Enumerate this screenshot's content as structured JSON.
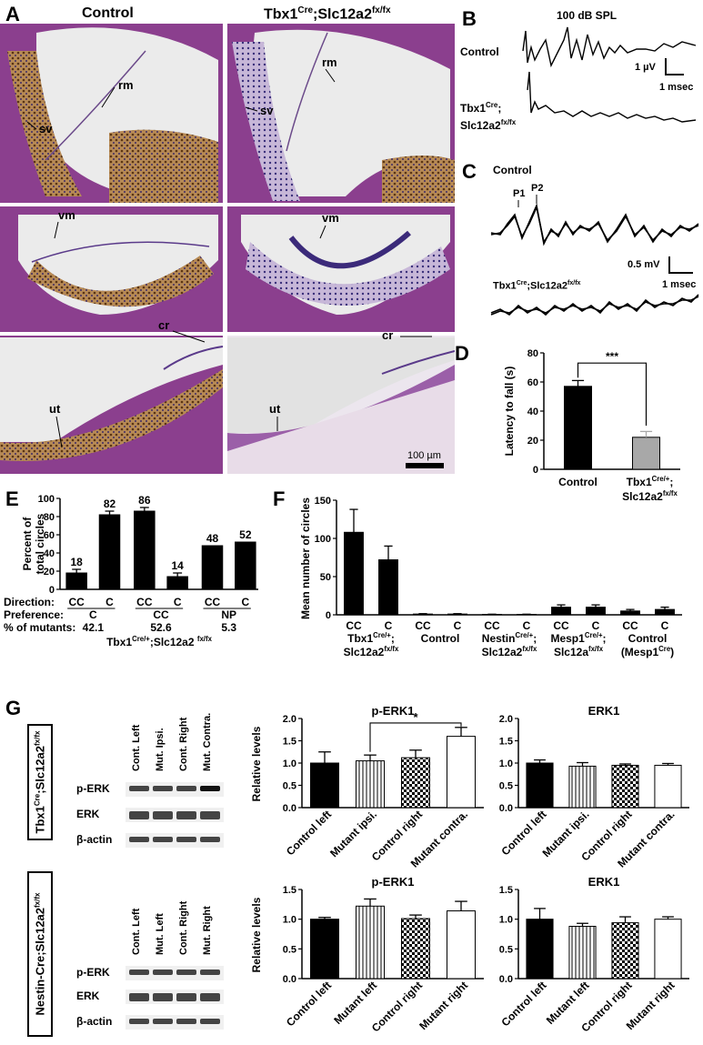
{
  "panel_a": {
    "letter": "A",
    "col_control": "Control",
    "col_mutant_main": "Tbx1",
    "col_mutant_sup1": "Cre",
    "col_mutant_mid": ";Slc12a2",
    "col_mutant_sup2": "fx/fx",
    "labels": {
      "rm": "rm",
      "sv": "sv",
      "vm": "vm",
      "ut": "ut",
      "cr": "cr"
    },
    "scalebar": "100 µm"
  },
  "panel_b": {
    "letter": "B",
    "title": "100 dB SPL",
    "control": "Control",
    "mutant_l1": "Tbx1",
    "mutant_l1_sup": "Cre",
    "mutant_l2": "Slc12a2",
    "mutant_l2_sup": "fx/fx",
    "scale_v": "1 µV",
    "scale_t": "1 msec"
  },
  "panel_c": {
    "letter": "C",
    "control": "Control",
    "p1": "P1",
    "p2": "P2",
    "scale_v": "0.5 mV",
    "scale_t": "1 msec",
    "mutant": "Tbx1",
    "mutant_sup1": "Cre",
    "mutant_mid": ";Slc12a2",
    "mutant_sup2": "fx/fx"
  },
  "chart_data": [
    {
      "id": "D",
      "type": "bar",
      "ylabel": "Latency to fall (s)",
      "ylim": [
        0,
        80
      ],
      "yticks": [
        0,
        20,
        40,
        60,
        80
      ],
      "categories": [
        "Control",
        "Tbx1Cre/+;Slc12a2fx/fx"
      ],
      "values": [
        57,
        22
      ],
      "errors": [
        4,
        4
      ],
      "colors": [
        "#000000",
        "#a8a8a8"
      ],
      "significance": "***"
    },
    {
      "id": "E",
      "type": "bar",
      "ylabel_l1": "Percent of",
      "ylabel_l2": "total circles",
      "ylim": [
        0,
        100
      ],
      "yticks": [
        0,
        20,
        40,
        60,
        80,
        100
      ],
      "categories": [
        "CC",
        "C",
        "CC",
        "C",
        "CC",
        "C"
      ],
      "values": [
        18,
        82,
        86,
        14,
        48,
        52
      ],
      "errors": [
        4,
        4,
        4,
        4,
        0,
        0
      ],
      "value_labels": [
        "18",
        "82",
        "86",
        "14",
        "48",
        "52"
      ],
      "row_labels": [
        "Direction:",
        "Preference:",
        "% of mutants:"
      ],
      "preference": [
        "C",
        "CC",
        "NP"
      ],
      "percent_mutants": [
        "42.1",
        "52.6",
        "5.3"
      ],
      "genotype": "Tbx1",
      "genotype_sup1": "Cre/+",
      "genotype_mid": ";Slc12a2 ",
      "genotype_sup2": "fx/fx"
    },
    {
      "id": "F",
      "type": "bar",
      "ylabel": "Mean number of circles",
      "ylim": [
        0,
        150
      ],
      "yticks": [
        0,
        50,
        100,
        150
      ],
      "categories": [
        "CC",
        "C",
        "CC",
        "C",
        "CC",
        "C",
        "CC",
        "C",
        "CC",
        "C"
      ],
      "values": [
        108,
        72,
        1,
        1,
        0.5,
        0.5,
        10,
        10,
        5,
        7
      ],
      "errors": [
        30,
        18,
        0.5,
        0.5,
        0.3,
        0.3,
        3,
        3,
        2,
        3
      ],
      "groups": [
        {
          "l1": "Tbx1",
          "l1_sup": "Cre/+",
          "l1_end": ";",
          "l2": "Slc12a2",
          "l2_sup": "fx/fx"
        },
        {
          "l1": "Control",
          "l1_sup": "",
          "l1_end": "",
          "l2": "",
          "l2_sup": ""
        },
        {
          "l1": "Nestin",
          "l1_sup": "Cre/+",
          "l1_end": ";",
          "l2": "Slc12a2",
          "l2_sup": "fx/fx"
        },
        {
          "l1": "Mesp1",
          "l1_sup": "Cre/+",
          "l1_end": ";",
          "l2": "Slc12a",
          "l2_sup": "fx/fx"
        },
        {
          "l1": "Control",
          "l1_sup": "",
          "l1_end": "",
          "l2": "(Mesp1",
          "l2_sup": "Cre",
          "l2_end": ")"
        }
      ]
    },
    {
      "id": "G1",
      "type": "bar",
      "title": "p-ERK1",
      "ylabel": "Relative levels",
      "ylim": [
        0,
        2.0
      ],
      "yticks": [
        "0.0",
        "0.5",
        "1.0",
        "1.5",
        "2.0"
      ],
      "categories": [
        "Control left",
        "Mutant ipsi.",
        "Control right",
        "Mutant contra."
      ],
      "values": [
        1.0,
        1.05,
        1.12,
        1.6
      ],
      "errors": [
        0.25,
        0.13,
        0.17,
        0.2
      ],
      "significance": "*"
    },
    {
      "id": "G2",
      "type": "bar",
      "title": "ERK1",
      "ylim": [
        0,
        2.0
      ],
      "yticks": [
        "0.0",
        "0.5",
        "1.0",
        "1.5",
        "2.0"
      ],
      "categories": [
        "Control left",
        "Mutant ipsi.",
        "Control right",
        "Mutant contra."
      ],
      "values": [
        1.0,
        0.93,
        0.95,
        0.95
      ],
      "errors": [
        0.07,
        0.08,
        0.03,
        0.04
      ]
    },
    {
      "id": "G3",
      "type": "bar",
      "title": "p-ERK1",
      "ylabel": "Relative levels",
      "ylim": [
        0,
        1.5
      ],
      "yticks": [
        "0.0",
        "0.5",
        "1.0",
        "1.5"
      ],
      "categories": [
        "Control left",
        "Mutant left",
        "Control right",
        "Mutant right"
      ],
      "values": [
        1.0,
        1.22,
        1.01,
        1.14
      ],
      "errors": [
        0.03,
        0.12,
        0.06,
        0.16
      ]
    },
    {
      "id": "G4",
      "type": "bar",
      "title": "ERK1",
      "ylim": [
        0,
        1.5
      ],
      "yticks": [
        "0.0",
        "0.5",
        "1.0",
        "1.5"
      ],
      "categories": [
        "Control left",
        "Mutant left",
        "Control right",
        "Mutant right"
      ],
      "values": [
        1.0,
        0.88,
        0.94,
        1.0
      ],
      "errors": [
        0.18,
        0.05,
        0.1,
        0.04
      ]
    }
  ],
  "panel_g": {
    "letter": "G",
    "box1_main": "Tbx1",
    "box1_sup1": "Cre",
    "box1_mid": ";Slc12a2",
    "box1_sup2": "fx/fx",
    "box2_main": "Nestin-Cre;Slc12a2",
    "box2_sup": "fx/fx",
    "blot1_lanes": [
      "Cont. Left",
      "Mut. Ipsi.",
      "Cont. Right",
      "Mut. Contra."
    ],
    "blot2_lanes": [
      "Cont. Left",
      "Mut. Left",
      "Cont. Right",
      "Mut. Right"
    ],
    "bands": [
      "p-ERK",
      "ERK",
      "β-actin"
    ]
  },
  "letters": {
    "D": "D",
    "E": "E",
    "F": "F"
  },
  "colors": {
    "tissue_purple": "#8b3f8e",
    "tissue_brown": "#8a5a2a",
    "bg_gray": "#e4e4e4"
  }
}
